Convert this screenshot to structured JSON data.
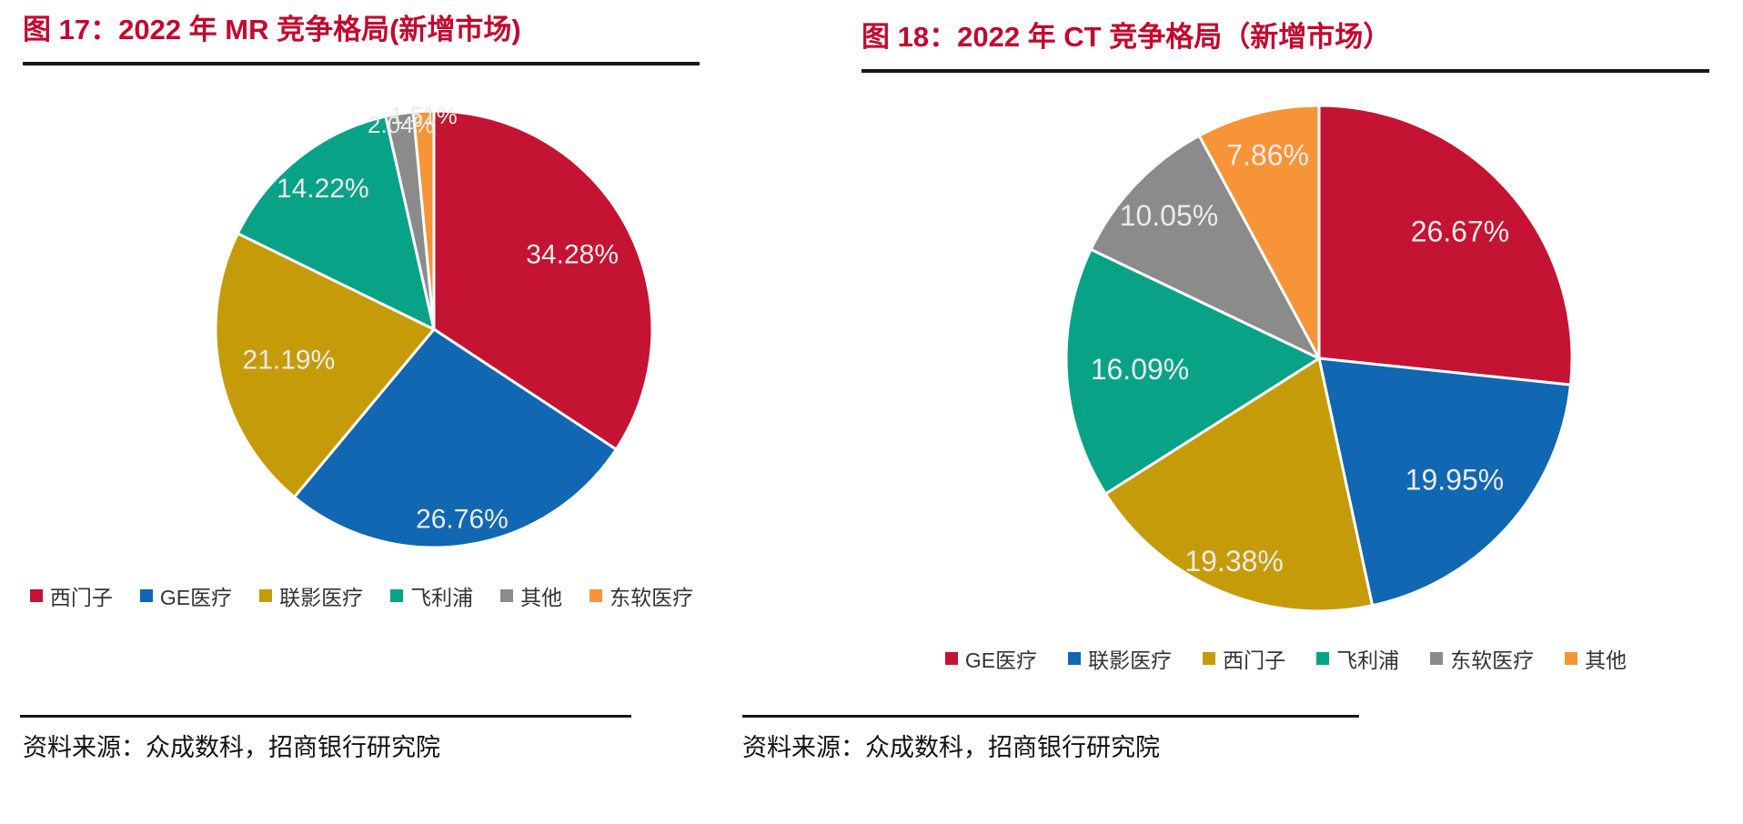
{
  "theme": {
    "title_color": "#C2082F",
    "rule_color": "#161616",
    "slice_label_color": "#EBEBEB",
    "slice_border_color": "#FFFFFF",
    "legend_text_color": "#333333",
    "source_text_color": "#111111"
  },
  "figures": [
    {
      "title": "图 17：2022 年 MR 竞争格局(新增市场)",
      "source_label": "资料来源：众成数科，招商银行研究院",
      "chart_data": {
        "type": "pie",
        "direction": "clockwise",
        "start_angle_deg": 0,
        "legend_position": "bottom",
        "slices": [
          {
            "label": "西门子",
            "value": 34.28,
            "display": "34.28%",
            "color": "#C41333",
            "label_r": 0.72
          },
          {
            "label": "GE医疗",
            "value": 26.76,
            "display": "26.76%",
            "color": "#1167B1",
            "label_r": 0.88
          },
          {
            "label": "联影医疗",
            "value": 21.19,
            "display": "21.19%",
            "color": "#C59B09",
            "label_r": 0.68
          },
          {
            "label": "飞利浦",
            "value": 14.22,
            "display": "14.22%",
            "color": "#08A287",
            "label_r": 0.82
          },
          {
            "label": "其他",
            "value": 2.04,
            "display": "2.04%",
            "color": "#8B8B8B",
            "label_r": 0.95
          },
          {
            "label": "东软医疗",
            "value": 1.51,
            "display": "1.51%",
            "color": "#F79438",
            "label_r": 0.98
          }
        ]
      }
    },
    {
      "title": "图 18：2022 年 CT 竞争格局（新增市场）",
      "source_label": "资料来源：众成数科，招商银行研究院",
      "chart_data": {
        "type": "pie",
        "direction": "clockwise",
        "start_angle_deg": 0,
        "legend_position": "bottom",
        "slices": [
          {
            "label": "GE医疗",
            "value": 26.67,
            "display": "26.67%",
            "color": "#C41333",
            "label_r": 0.75
          },
          {
            "label": "联影医疗",
            "value": 19.95,
            "display": "19.95%",
            "color": "#1167B1",
            "label_r": 0.72
          },
          {
            "label": "西门子",
            "value": 19.38,
            "display": "19.38%",
            "color": "#C59B09",
            "label_r": 0.87
          },
          {
            "label": "飞利浦",
            "value": 16.09,
            "display": "16.09%",
            "color": "#08A287",
            "label_r": 0.71
          },
          {
            "label": "东软医疗",
            "value": 10.05,
            "display": "10.05%",
            "color": "#8B8B8B",
            "label_r": 0.82
          },
          {
            "label": "其他",
            "value": 7.86,
            "display": "7.86%",
            "color": "#F79438",
            "label_r": 0.83
          }
        ]
      }
    }
  ]
}
